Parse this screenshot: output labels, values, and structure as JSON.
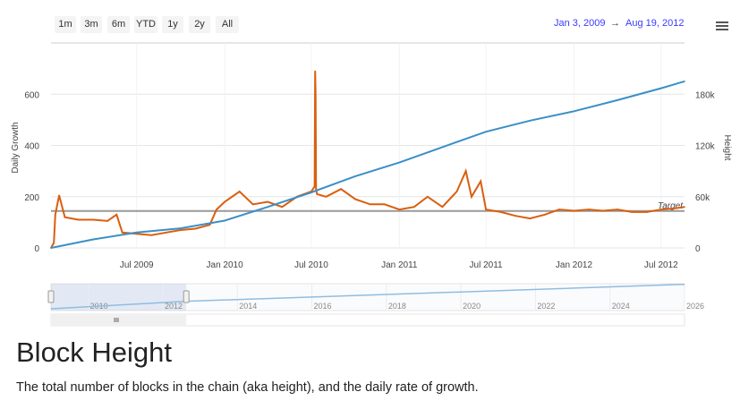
{
  "range_selector": {
    "buttons": [
      "1m",
      "3m",
      "6m",
      "YTD",
      "1y",
      "2y",
      "All"
    ],
    "from": "Jan 3, 2009",
    "arrow": "→",
    "to": "Aug 19, 2012"
  },
  "title": "Block Height",
  "description": "The total number of blocks in the chain (aka height), and the daily rate of growth.",
  "chart_data": {
    "type": "line",
    "title": "Block Height",
    "x_range": [
      "2009-01-03",
      "2012-08-19"
    ],
    "x_ticks": [
      "Jul 2009",
      "Jan 2010",
      "Jul 2010",
      "Jan 2011",
      "Jul 2011",
      "Jan 2012",
      "Jul 2012"
    ],
    "y_left": {
      "label": "Daily Growth",
      "ticks": [
        "0",
        "200",
        "400",
        "600"
      ],
      "range": [
        0,
        800
      ]
    },
    "y_right": {
      "label": "Height",
      "ticks": [
        "0",
        "60k",
        "120k",
        "180k"
      ],
      "range": [
        0,
        240000
      ]
    },
    "plot_line": {
      "label": "Target",
      "value": 144
    },
    "series": [
      {
        "name": "Daily Growth",
        "color": "#d95f0e",
        "axis": "left",
        "x": [
          "2009-01-03",
          "2009-01-09",
          "2009-01-12",
          "2009-01-20",
          "2009-02-01",
          "2009-03-01",
          "2009-04-01",
          "2009-05-01",
          "2009-05-20",
          "2009-06-01",
          "2009-07-01",
          "2009-08-01",
          "2009-09-01",
          "2009-10-01",
          "2009-11-01",
          "2009-12-01",
          "2009-12-15",
          "2010-01-01",
          "2010-02-01",
          "2010-03-01",
          "2010-04-01",
          "2010-05-01",
          "2010-06-01",
          "2010-07-01",
          "2010-07-08",
          "2010-07-09",
          "2010-07-10",
          "2010-07-11",
          "2010-07-13",
          "2010-08-01",
          "2010-09-01",
          "2010-10-01",
          "2010-11-01",
          "2010-12-01",
          "2011-01-01",
          "2011-02-01",
          "2011-03-01",
          "2011-04-01",
          "2011-05-01",
          "2011-05-20",
          "2011-06-01",
          "2011-06-20",
          "2011-07-01",
          "2011-08-01",
          "2011-09-01",
          "2011-10-01",
          "2011-11-01",
          "2011-12-01",
          "2012-01-01",
          "2012-02-01",
          "2012-03-01",
          "2012-04-01",
          "2012-05-01",
          "2012-06-01",
          "2012-07-01",
          "2012-08-01",
          "2012-08-19"
        ],
        "values": [
          0,
          20,
          130,
          205,
          120,
          110,
          110,
          105,
          130,
          60,
          55,
          50,
          60,
          70,
          75,
          90,
          150,
          180,
          220,
          170,
          180,
          160,
          200,
          220,
          240,
          690,
          600,
          230,
          210,
          200,
          230,
          190,
          170,
          170,
          150,
          160,
          200,
          160,
          220,
          300,
          200,
          260,
          150,
          140,
          125,
          115,
          130,
          150,
          145,
          150,
          145,
          150,
          140,
          140,
          150,
          155,
          160
        ]
      },
      {
        "name": "Height",
        "color": "#3b8fc6",
        "axis": "right",
        "x": [
          "2009-01-03",
          "2009-04-01",
          "2009-07-01",
          "2009-10-01",
          "2010-01-01",
          "2010-04-01",
          "2010-07-01",
          "2010-10-01",
          "2011-01-01",
          "2011-04-01",
          "2011-07-01",
          "2011-10-01",
          "2012-01-01",
          "2012-04-01",
          "2012-07-01",
          "2012-08-19"
        ],
        "values": [
          0,
          10000,
          18000,
          23000,
          32000,
          48000,
          65000,
          84000,
          100000,
          118000,
          136000,
          149000,
          160000,
          173000,
          187000,
          195000
        ]
      }
    ],
    "navigator": {
      "x_ticks": [
        "2010",
        "2012",
        "2014",
        "2016",
        "2018",
        "2020",
        "2022",
        "2024",
        "2026"
      ],
      "range": [
        2009,
        2026
      ],
      "selected": [
        2009.0,
        2012.63
      ]
    },
    "legend": "none",
    "grid": true
  }
}
